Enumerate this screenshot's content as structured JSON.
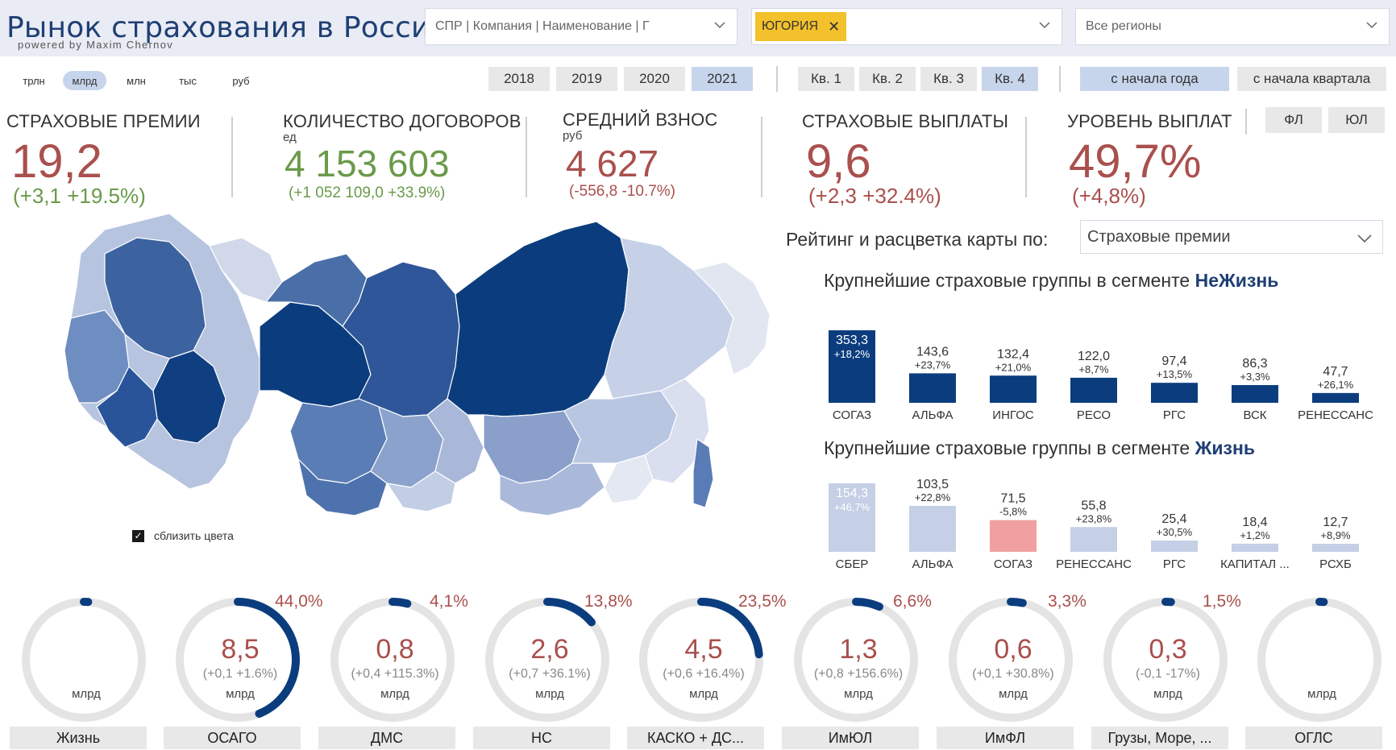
{
  "header": {
    "title": "Рынок страхования в России",
    "subtitle": "powered by Maxim Chernov",
    "company_dropdown": "СПР | Компания | Наименование | Г",
    "selected_company": "ЮГОРИЯ",
    "region_dropdown": "Все регионы"
  },
  "units": [
    "трлн",
    "млрд",
    "млн",
    "тыс",
    "руб"
  ],
  "units_active": "млрд",
  "years": [
    "2018",
    "2019",
    "2020",
    "2021"
  ],
  "year_active": "2021",
  "quarters": [
    "Кв. 1",
    "Кв. 2",
    "Кв. 3",
    "Кв. 4"
  ],
  "quarter_active": "Кв. 4",
  "periods": [
    "с начала года",
    "с начала квартала"
  ],
  "period_active": "с начала года",
  "segments": [
    "ФЛ",
    "ЮЛ"
  ],
  "kpis": {
    "premiums": {
      "label": "СТРАХОВЫЕ ПРЕМИИ",
      "value": "19,2",
      "delta": "(+3,1 +19.5%)"
    },
    "contracts": {
      "label": "КОЛИЧЕСТВО ДОГОВОРОВ",
      "unit": "ед",
      "value": "4 153 603",
      "delta": "(+1 052 109,0 +33.9%)"
    },
    "avg": {
      "label": "СРЕДНИЙ ВЗНОС",
      "unit": "руб",
      "value": "4 627",
      "delta": "(-556,8 -10.7%)"
    },
    "payouts": {
      "label": "СТРАХОВЫЕ ВЫПЛАТЫ",
      "value": "9,6",
      "delta": "(+2,3 +32.4%)"
    },
    "ratio": {
      "label": "УРОВЕНЬ ВЫПЛАТ",
      "value": "49,7%",
      "delta": "(+4,8%)"
    }
  },
  "map": {
    "checkbox_label": "сблизить цвета",
    "colors": {
      "dark": "#0b3d7e",
      "mid": "#4a6fa8",
      "light": "#a9b8d8",
      "pale": "#d4dbea"
    }
  },
  "rating": {
    "label": "Рейтинг и расцветка карты по:",
    "value": "Страховые премии"
  },
  "nonlife": {
    "title_prefix": "Крупнейшие страховые группы в сегменте ",
    "title_bold": "НеЖизнь",
    "bars": [
      {
        "name": "СОГАЗ",
        "value": "353,3",
        "change": "+18,2%"
      },
      {
        "name": "АЛЬФА",
        "value": "143,6",
        "change": "+23,7%"
      },
      {
        "name": "ИНГОС",
        "value": "132,4",
        "change": "+21,0%"
      },
      {
        "name": "РЕСО",
        "value": "122,0",
        "change": "+8,7%"
      },
      {
        "name": "РГС",
        "value": "97,4",
        "change": "+13,5%"
      },
      {
        "name": "ВСК",
        "value": "86,3",
        "change": "+3,3%"
      },
      {
        "name": "РЕНЕССАНС",
        "value": "47,7",
        "change": "+26,1%"
      }
    ]
  },
  "life": {
    "title_prefix": "Крупнейшие страховые группы в сегменте ",
    "title_bold": "Жизнь",
    "bars": [
      {
        "name": "СБЕР",
        "value": "154,3",
        "change": "+46,7%"
      },
      {
        "name": "АЛЬФА",
        "value": "103,5",
        "change": "+22,8%"
      },
      {
        "name": "СОГАЗ",
        "value": "71,5",
        "change": "-5,8%"
      },
      {
        "name": "РЕНЕССАНС",
        "value": "55,8",
        "change": "+23,8%"
      },
      {
        "name": "РГС",
        "value": "25,4",
        "change": "+30,5%"
      },
      {
        "name": "КАПИТАЛ ...",
        "value": "18,4",
        "change": "+1,2%"
      },
      {
        "name": "РСХБ",
        "value": "12,7",
        "change": "+8,9%"
      }
    ]
  },
  "gauges": [
    {
      "label": "Жизнь",
      "share": "",
      "value": "",
      "delta": "",
      "unit": "млрд",
      "fraction": 0.0
    },
    {
      "label": "ОСАГО",
      "share": "44,0%",
      "value": "8,5",
      "delta": "(+0,1 +1.6%)",
      "unit": "млрд",
      "fraction": 0.44
    },
    {
      "label": "ДМС",
      "share": "4,1%",
      "value": "0,8",
      "delta": "(+0,4 +115.3%)",
      "unit": "млрд",
      "fraction": 0.041
    },
    {
      "label": "НС",
      "share": "13,8%",
      "value": "2,6",
      "delta": "(+0,7 +36.1%)",
      "unit": "млрд",
      "fraction": 0.138
    },
    {
      "label": "КАСКО + ДС...",
      "share": "23,5%",
      "value": "4,5",
      "delta": "(+0,6 +16.4%)",
      "unit": "млрд",
      "fraction": 0.235
    },
    {
      "label": "ИмЮЛ",
      "share": "6,6%",
      "value": "1,3",
      "delta": "(+0,8 +156.6%)",
      "unit": "млрд",
      "fraction": 0.066
    },
    {
      "label": "ИмФЛ",
      "share": "3,3%",
      "value": "0,6",
      "delta": "(+0,1 +30.8%)",
      "unit": "млрд",
      "fraction": 0.033
    },
    {
      "label": "Грузы, Море, ...",
      "share": "1,5%",
      "value": "0,3",
      "delta": "(-0,1 -17%)",
      "unit": "млрд",
      "fraction": 0.015
    },
    {
      "label": "ОГЛС",
      "share": "",
      "value": "",
      "delta": "",
      "unit": "млрд",
      "fraction": 0.0
    }
  ]
}
